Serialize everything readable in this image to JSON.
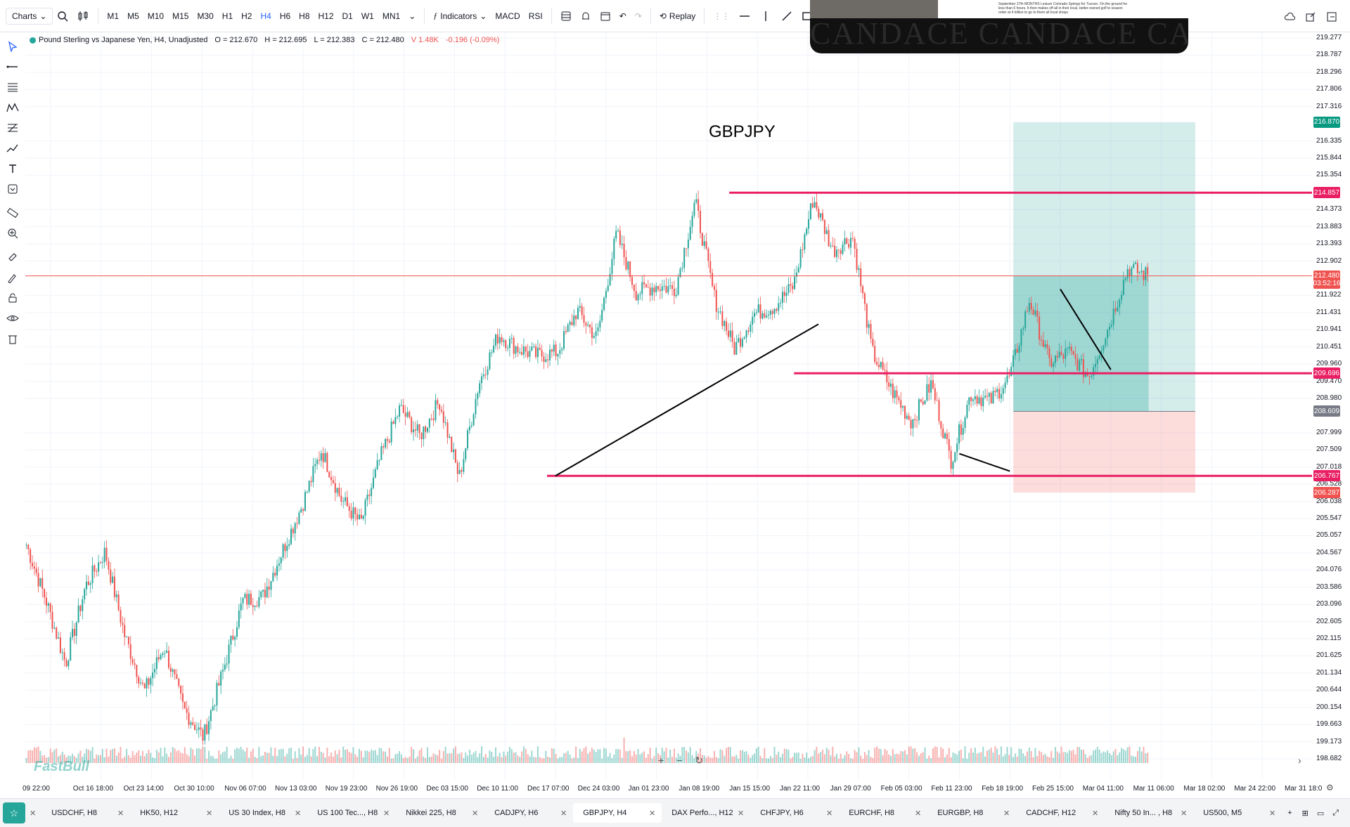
{
  "app": {
    "charts_label": "Charts"
  },
  "toolbar": {
    "timeframes": [
      "M1",
      "M5",
      "M10",
      "M15",
      "M30",
      "H1",
      "H2",
      "H4",
      "H6",
      "H8",
      "H12",
      "D1",
      "W1",
      "MN1"
    ],
    "active_timeframe": "H4",
    "indicators_label": "Indicators",
    "macd_label": "MACD",
    "rsi_label": "RSI",
    "replay_label": "Replay"
  },
  "legend": {
    "symbol": "Pound Sterling vs Japanese Yen, H4, Unadjusted",
    "open": "O = 212.670",
    "high": "H = 212.695",
    "low": "L = 212.383",
    "close": "C = 212.480",
    "volume": "V 1.48K",
    "change": "-0.196 (-0.09%)"
  },
  "annotation": {
    "pair": "GBPJPY"
  },
  "watermark": "FastBull",
  "video": {
    "banner": "CANDACE CANDACE CANDACE",
    "caption": "September 27th MONTHS Leisure Colorado Springs for Tucson. On the ground for less than 6 hours. It then makes off all in their local, better-owned golf to season order at 4 billion to go to them all local shops"
  },
  "price_scale": {
    "labels": [
      "219.277",
      "218.787",
      "218.296",
      "217.806",
      "217.316",
      "216.335",
      "215.844",
      "215.354",
      "214.373",
      "213.883",
      "213.393",
      "212.902",
      "211.922",
      "211.431",
      "210.941",
      "210.451",
      "209.960",
      "209.470",
      "208.980",
      "207.999",
      "207.509",
      "207.018",
      "206.528",
      "206.038",
      "205.547",
      "205.057",
      "204.567",
      "204.076",
      "203.586",
      "203.096",
      "202.605",
      "202.115",
      "201.625",
      "201.134",
      "200.644",
      "200.154",
      "199.663",
      "199.173",
      "198.682"
    ],
    "tags": [
      {
        "text": "216.870",
        "color": "#089981"
      },
      {
        "text": "214.857",
        "color": "#e91e63"
      },
      {
        "text": "212.480",
        "color": "#ef5350",
        "sub": "03:52:16"
      },
      {
        "text": "209.696",
        "color": "#e91e63"
      },
      {
        "text": "208.609",
        "color": "#787b86"
      },
      {
        "text": "206.767",
        "color": "#e91e63"
      },
      {
        "text": "206.287",
        "color": "#ef5350"
      }
    ]
  },
  "time_scale": [
    "09 22:00",
    "Oct 16 18:00",
    "Oct 23 14:00",
    "Oct 30 10:00",
    "Nov 06 07:00",
    "Nov 13 03:00",
    "Nov 19 23:00",
    "Nov 26 19:00",
    "Dec 03 15:00",
    "Dec 10 11:00",
    "Dec 17 07:00",
    "Dec 24 03:00",
    "Jan 01 23:00",
    "Jan 08 19:00",
    "Jan 15 15:00",
    "Jan 22 11:00",
    "Jan 29 07:00",
    "Feb 05 03:00",
    "Feb 11 23:00",
    "Feb 18 19:00",
    "Feb 25 15:00",
    "Mar 04 11:00",
    "Mar 11 06:00",
    "Mar 18 02:00",
    "Mar 24 22:00",
    "Mar 31 18:0"
  ],
  "tabs": [
    {
      "label": "USDCHF, H8"
    },
    {
      "label": "HK50, H12"
    },
    {
      "label": "US 30 Index, H8"
    },
    {
      "label": "US 100 Tec..., H8"
    },
    {
      "label": "Nikkei 225, H8"
    },
    {
      "label": "CADJPY, H6"
    },
    {
      "label": "GBPJPY, H4",
      "active": true
    },
    {
      "label": "DAX Perfo..., H12"
    },
    {
      "label": "CHFJPY, H6"
    },
    {
      "label": "EURCHF, H8"
    },
    {
      "label": "EURGBP, H8"
    },
    {
      "label": "CADCHF, H12"
    },
    {
      "label": "Nifty 50 In... , H8"
    },
    {
      "label": "US500, M5"
    }
  ],
  "chart_data": {
    "type": "candlestick",
    "symbol": "GBPJPY",
    "timeframe": "H4",
    "ylim": [
      198.4,
      219.5
    ],
    "x_labels": [
      "09 22:00",
      "Oct 16 18:00",
      "Oct 23 14:00",
      "Oct 30 10:00",
      "Nov 06 07:00",
      "Nov 13 03:00",
      "Nov 19 23:00",
      "Nov 26 19:00",
      "Dec 03 15:00",
      "Dec 10 11:00",
      "Dec 17 07:00",
      "Dec 24 03:00",
      "Jan 01 23:00",
      "Jan 08 19:00",
      "Jan 15 15:00",
      "Jan 22 11:00",
      "Jan 29 07:00",
      "Feb 05 03:00",
      "Feb 11 23:00",
      "Feb 18 19:00",
      "Feb 25 15:00",
      "Mar 04 11:00",
      "Mar 11 06:00"
    ],
    "price_path": [
      204.8,
      203.2,
      201.4,
      203.6,
      204.6,
      202.2,
      200.6,
      201.9,
      200.1,
      199.3,
      201.2,
      203.2,
      203.3,
      204.6,
      205.9,
      207.5,
      206.1,
      205.4,
      207.3,
      208.7,
      207.9,
      208.9,
      206.7,
      209.4,
      210.8,
      210.4,
      210.2,
      210.3,
      211.5,
      210.7,
      213.7,
      212.0,
      212.2,
      212.1,
      214.6,
      211.8,
      210.4,
      211.4,
      211.6,
      212.2,
      214.7,
      213.2,
      213.6,
      210.3,
      209.2,
      208.3,
      209.4,
      207.2,
      209.1,
      208.9,
      209.6,
      211.8,
      210.0,
      210.3,
      209.6,
      211.0,
      212.7,
      212.5
    ],
    "last_price": 212.48,
    "horizontal_levels": [
      214.857,
      209.696,
      206.767,
      212.48
    ],
    "trendlines": [
      {
        "from": [
          "Dec 17 07:00",
          206.767
        ],
        "to": [
          "Jan 22 11:00",
          211.1
        ]
      },
      {
        "from": [
          "Feb 11 23:00",
          207.4
        ],
        "to": [
          "Feb 18 19:00",
          206.9
        ]
      },
      {
        "from": [
          "Feb 25 15:00",
          212.1
        ],
        "to": [
          "Mar 04 11:00",
          209.8
        ]
      }
    ],
    "position": {
      "type": "long",
      "entry": 208.609,
      "target": 216.87,
      "stop": 206.287
    },
    "volume": "bars"
  }
}
